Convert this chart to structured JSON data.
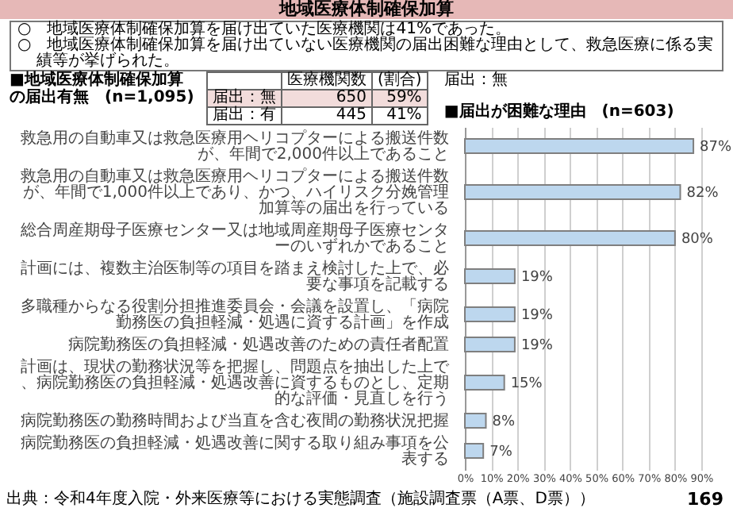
{
  "chart_data": {
    "type": "bar",
    "orientation": "horizontal",
    "title": "地域医療体制確保加算",
    "subtitle": "■届出が困難な理由　(n=603)",
    "categories": [
      "救急用の自動車又は救急医療用ヘリコプターによる搬送件数が、年間で2,000件以上であること",
      "救急用の自動車又は救急医療用ヘリコプターによる搬送件数が、年間で1,000件以上であり、かつ、ハイリスク分娩管理加算等の届出を行っている",
      "総合周産期母子医療センター又は地域周産期母子医療センターのいずれかであること",
      "計画には、複数主治医制等の項目を踏まえ検討した上で、必要な事項を記載する",
      "多職種からなる役割分担推進委員会・会議を設置し、「病院勤務医の負担軽減・処遇に資する計画」を作成",
      "病院勤務医の負担軽減・処遇改善のための責任者配置",
      "計画は、現状の勤務状況等を把握し、問題点を抽出した上で、病院勤務医の負担軽減・処遇改善に資するものとし、定期的な評価・見直しを行う",
      "病院勤務医の勤務時間および当直を含む夜間の勤務状況把握",
      "病院勤務医の負担軽減・処遇改善に関する取り組み事項を公表する"
    ],
    "values": [
      87,
      82,
      80,
      19,
      19,
      19,
      15,
      8,
      7
    ],
    "value_labels": [
      "87%",
      "82%",
      "80%",
      "19%",
      "19%",
      "19%",
      "15%",
      "8%",
      "7%"
    ],
    "color": "#bdd7ee",
    "xlim": [
      0,
      90
    ],
    "xticks": [
      {
        "value": 0,
        "label": "0%"
      },
      {
        "value": 10,
        "label": "10%"
      },
      {
        "value": 20,
        "label": "20%"
      },
      {
        "value": 30,
        "label": "30%"
      },
      {
        "value": 40,
        "label": "40%"
      },
      {
        "value": 50,
        "label": "50%"
      },
      {
        "value": 60,
        "label": "60%"
      },
      {
        "value": 70,
        "label": "70%"
      },
      {
        "value": 80,
        "label": "80%"
      },
      {
        "value": 90,
        "label": "90%"
      }
    ],
    "grid": "x",
    "annotations": [
      "○　地域医療体制確保加算を届け出ていた医療機関は41%であった。",
      "○　地域医療体制確保加算を届け出ていない医療機関の届出困難な理由として、救急医療に係る実績等が挙げられた。",
      "■地域医療体制確保加算の届出有無　(n=1,095)",
      "医療機関数",
      "(割合)",
      "届出：無",
      "650",
      "59%",
      "届出：有",
      "445",
      "41%",
      "届出：無",
      "出典：令和4年度入院・外来医療等における実態調査（施設調査票（A票、D票））",
      "169"
    ]
  }
}
